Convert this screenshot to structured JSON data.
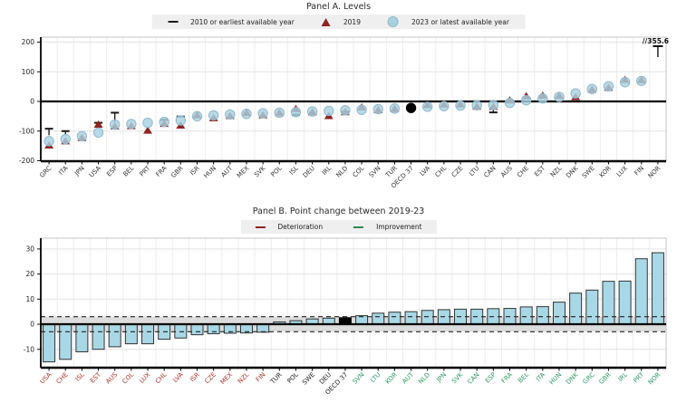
{
  "chart_data": [
    {
      "type": "scatter",
      "title": "Panel A. Levels",
      "legend": [
        {
          "label": "2010  or earliest available year",
          "marker": "dash",
          "color": "#1a1a1a"
        },
        {
          "label": "2019",
          "marker": "triangle",
          "color": "#8e2320"
        },
        {
          "label": "2023  or latest available year",
          "marker": "circle",
          "color": "#a8d2e2"
        }
      ],
      "ylim": [
        -200,
        200
      ],
      "yticks": [
        200,
        100,
        0,
        -100,
        -200
      ],
      "grid": true,
      "legend_position": "top",
      "categories": [
        "GRC",
        "ITA",
        "JPN",
        "USA",
        "ESP",
        "BEL",
        "PRT",
        "FRA",
        "GBR",
        "ISR",
        "HUN",
        "AUT",
        "MEX",
        "SVK",
        "POL",
        "ISL",
        "DEU",
        "IRL",
        "NLD",
        "COL",
        "SVN",
        "TUR",
        "OECD 37",
        "LVA",
        "CHL",
        "CZE",
        "LTU",
        "CAN",
        "AUS",
        "CHE",
        "EST",
        "NZL",
        "DNK",
        "SWE",
        "KOR",
        "LUX",
        "FIN",
        "NOR"
      ],
      "series": [
        {
          "name": "2010 or earliest available year",
          "marker": "dash",
          "values": [
            -92,
            -100,
            null,
            -72,
            -38,
            null,
            null,
            -62,
            -51,
            null,
            null,
            null,
            null,
            null,
            null,
            -45,
            -44,
            null,
            -35,
            null,
            null,
            null,
            null,
            null,
            null,
            null,
            null,
            -37,
            null,
            null,
            null,
            null,
            null,
            null,
            null,
            null,
            null,
            null
          ]
        },
        {
          "name": "2019",
          "marker": "triangle",
          "values": [
            -148,
            -134,
            -123,
            -78,
            -84,
            -83,
            -98,
            -75,
            -81,
            -46,
            -56,
            -49,
            -38,
            -46,
            -39,
            -25,
            -36,
            -49,
            -36,
            -20,
            -29,
            -25,
            null,
            -12,
            -10,
            -10,
            -17,
            -18,
            4,
            18,
            20,
            19,
            15,
            40,
            46,
            73,
            72,
            null
          ]
        },
        {
          "name": "2023 or latest available year",
          "marker": "circle",
          "values": [
            -134,
            -127,
            -117,
            -105,
            -78,
            -76,
            -72,
            -69,
            -64,
            -50,
            -47,
            -44,
            -42,
            -40,
            -38,
            -36,
            -34,
            -32,
            -30,
            -28,
            -26,
            -24,
            -22,
            -18,
            -16,
            -14,
            -13,
            -12,
            -5,
            4,
            10,
            15,
            27,
            42,
            51,
            65,
            69,
            355.6
          ]
        }
      ],
      "highlight_category": "OECD 37",
      "highlight_color": "#000000",
      "stems": {
        "GRC": -114,
        "ITA": -114,
        "ESP": -70,
        "CAN": -23
      },
      "axis_break_annotation": {
        "category": "NOR",
        "text": "//355.6",
        "value": 355.6
      }
    },
    {
      "type": "bar",
      "title": "Panel B. Point change between 2019-23",
      "legend": [
        {
          "label": "Deterioration",
          "marker": "dash",
          "color": "#8e2320"
        },
        {
          "label": "Improvement",
          "marker": "dash",
          "color": "#2e8a57"
        }
      ],
      "ylim": [
        -17,
        34
      ],
      "yticks": [
        30,
        20,
        10,
        0,
        -10
      ],
      "grid": true,
      "band": {
        "from": -3,
        "to": 3,
        "color": "#dcdcdc"
      },
      "bar_color": "#a8d8e6",
      "categories": [
        "USA",
        "CHE",
        "ISL",
        "EST",
        "AUS",
        "COL",
        "LUX",
        "CHL",
        "LVA",
        "ISR",
        "CZE",
        "MEX",
        "NZL",
        "FIN",
        "TUR",
        "POL",
        "SWE",
        "DEU",
        "OECD 37",
        "SVN",
        "LTU",
        "KOR",
        "AUT",
        "NLD",
        "JPN",
        "SVK",
        "CAN",
        "ESP",
        "FRA",
        "BEL",
        "ITA",
        "HUN",
        "DNK",
        "GRC",
        "GBR",
        "IRL",
        "PRT",
        "NOR"
      ],
      "values": [
        -15,
        -14,
        -11,
        -10,
        -9,
        -7.8,
        -7.8,
        -6,
        -5.5,
        -4.2,
        -3.8,
        -3.6,
        -3.5,
        -3.2,
        0.9,
        1.4,
        2.1,
        2.4,
        2.6,
        3.4,
        4.4,
        4.8,
        5,
        5.5,
        5.8,
        6,
        6,
        6.2,
        6.3,
        6.9,
        7,
        8.8,
        12.4,
        13.6,
        17.1,
        17.2,
        26.1,
        28.5
      ],
      "label_colors": [
        "#a6362c",
        "#a6362c",
        "#a6362c",
        "#a6362c",
        "#a6362c",
        "#a6362c",
        "#a6362c",
        "#a6362c",
        "#a6362c",
        "#a6362c",
        "#a6362c",
        "#a6362c",
        "#a6362c",
        "#a6362c",
        "#1a1a1a",
        "#1a1a1a",
        "#1a1a1a",
        "#1a1a1a",
        "#1a1a1a",
        "#2f9963",
        "#2f9963",
        "#2f9963",
        "#2f9963",
        "#2f9963",
        "#2f9963",
        "#2f9963",
        "#2f9963",
        "#2f9963",
        "#2f9963",
        "#2f9963",
        "#2f9963",
        "#2f9963",
        "#2f9963",
        "#2f9963",
        "#2f9963",
        "#2f9963",
        "#2f9963",
        "#2f9963"
      ],
      "highlight_category": "OECD 37",
      "highlight_color": "#000000"
    }
  ]
}
